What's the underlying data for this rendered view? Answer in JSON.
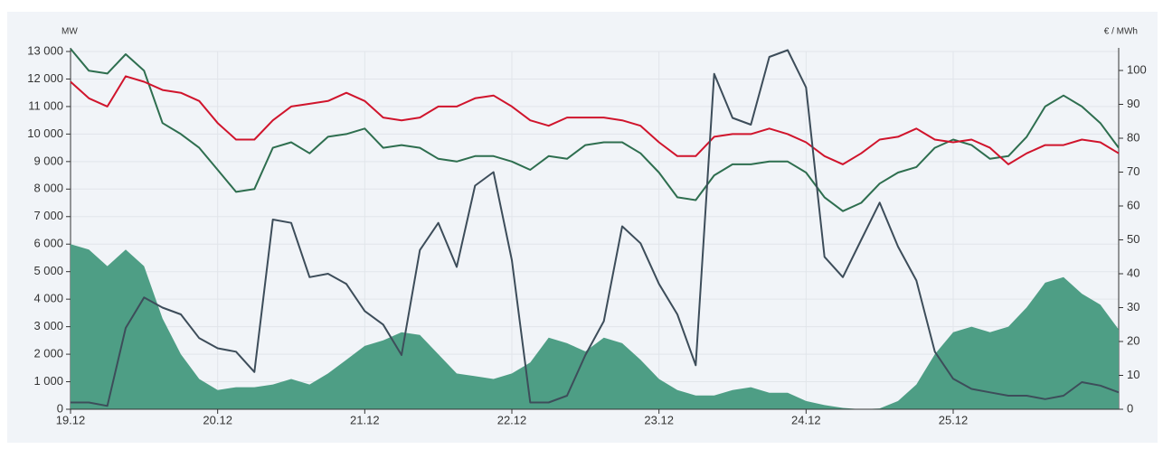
{
  "chart_data": {
    "type": "line",
    "y_label": "MW",
    "y2_label": "€ / MWh",
    "categories": [
      "19.12",
      null,
      null,
      null,
      null,
      null,
      null,
      null,
      "20.12",
      null,
      null,
      null,
      null,
      null,
      null,
      null,
      "21.12",
      null,
      null,
      null,
      null,
      null,
      null,
      null,
      "22.12",
      null,
      null,
      null,
      null,
      null,
      null,
      null,
      "23.12",
      null,
      null,
      null,
      null,
      null,
      null,
      null,
      "24.12",
      null,
      null,
      null,
      null,
      null,
      null,
      null,
      "25.12",
      null,
      null,
      null,
      null,
      null,
      null,
      null,
      null,
      null
    ],
    "ylim": [
      0,
      13000
    ],
    "yticks": [
      0,
      {
        "value": 1000,
        "label": "1 000"
      },
      {
        "value": 2000,
        "label": "2 000"
      },
      {
        "value": 3000,
        "label": "3 000"
      },
      {
        "value": 4000,
        "label": "4 000"
      },
      {
        "value": 5000,
        "label": "5 000"
      },
      {
        "value": 6000,
        "label": "6 000"
      },
      {
        "value": 7000,
        "label": "7 000"
      },
      {
        "value": 8000,
        "label": "8 000"
      },
      {
        "value": 9000,
        "label": "9 000"
      },
      {
        "value": 10000,
        "label": "10 000"
      },
      {
        "value": 11000,
        "label": "11 000"
      },
      {
        "value": 12000,
        "label": "12 000"
      },
      {
        "value": 13000,
        "label": "13 000"
      }
    ],
    "y2lim": [
      0,
      105.6
    ],
    "y2ticks": [
      0,
      10,
      20,
      30,
      40,
      50,
      60,
      70,
      80,
      90,
      100
    ],
    "grid": true,
    "series": [
      {
        "style": "area",
        "color": "#4e9e85",
        "axis": "y",
        "values": [
          6000,
          5800,
          5200,
          5800,
          5200,
          3300,
          2000,
          1100,
          700,
          800,
          800,
          900,
          1100,
          900,
          1300,
          1800,
          2300,
          2500,
          2800,
          2700,
          2000,
          1300,
          1200,
          1100,
          1300,
          1700,
          2600,
          2400,
          2100,
          2600,
          2400,
          1800,
          1100,
          700,
          500,
          500,
          700,
          800,
          600,
          600,
          300,
          150,
          50,
          0,
          30,
          300,
          900,
          2000,
          2800,
          3000,
          2800,
          3000,
          3700,
          4600,
          4800,
          4200,
          3800,
          2900
        ]
      },
      {
        "style": "line",
        "color": "#2e6e4f",
        "axis": "y",
        "values": [
          13100,
          12300,
          12200,
          12900,
          12300,
          10400,
          10000,
          9500,
          8700,
          7900,
          8000,
          9500,
          9700,
          9300,
          9900,
          10000,
          10200,
          9500,
          9600,
          9500,
          9100,
          9000,
          9200,
          9200,
          9000,
          8700,
          9200,
          9100,
          9600,
          9700,
          9700,
          9300,
          8600,
          7700,
          7600,
          8500,
          8900,
          8900,
          9000,
          9000,
          8600,
          7700,
          7200,
          7500,
          8200,
          8600,
          8800,
          9500,
          9800,
          9600,
          9100,
          9200,
          9900,
          11000,
          11400,
          11000,
          10400,
          9500
        ]
      },
      {
        "style": "line",
        "color": "#d0142c",
        "axis": "y",
        "values": [
          11900,
          11300,
          11000,
          12100,
          11900,
          11600,
          11500,
          11200,
          10400,
          9800,
          9800,
          10500,
          11000,
          11100,
          11200,
          11500,
          11200,
          10600,
          10500,
          10600,
          11000,
          11000,
          11300,
          11400,
          11000,
          10500,
          10300,
          10600,
          10600,
          10600,
          10500,
          10300,
          9700,
          9200,
          9200,
          9900,
          10000,
          10000,
          10200,
          10000,
          9700,
          9200,
          8900,
          9300,
          9800,
          9900,
          10200,
          9800,
          9700,
          9800,
          9500,
          8900,
          9300,
          9600,
          9600,
          9800,
          9700,
          9300
        ]
      },
      {
        "style": "line",
        "color": "#3d4d5a",
        "axis": "y2",
        "values": [
          2,
          2,
          1,
          24,
          33,
          30,
          28,
          21,
          18,
          17,
          11,
          56,
          55,
          39,
          40,
          37,
          29,
          25,
          16,
          47,
          55,
          42,
          66,
          70,
          44,
          2,
          2,
          4,
          16,
          26,
          54,
          49,
          37,
          28,
          13,
          99,
          86,
          84,
          104,
          106,
          95,
          45,
          39,
          50,
          61,
          48,
          38,
          17,
          9,
          6,
          5,
          4,
          4,
          3,
          4,
          8,
          7,
          5
        ]
      }
    ]
  }
}
